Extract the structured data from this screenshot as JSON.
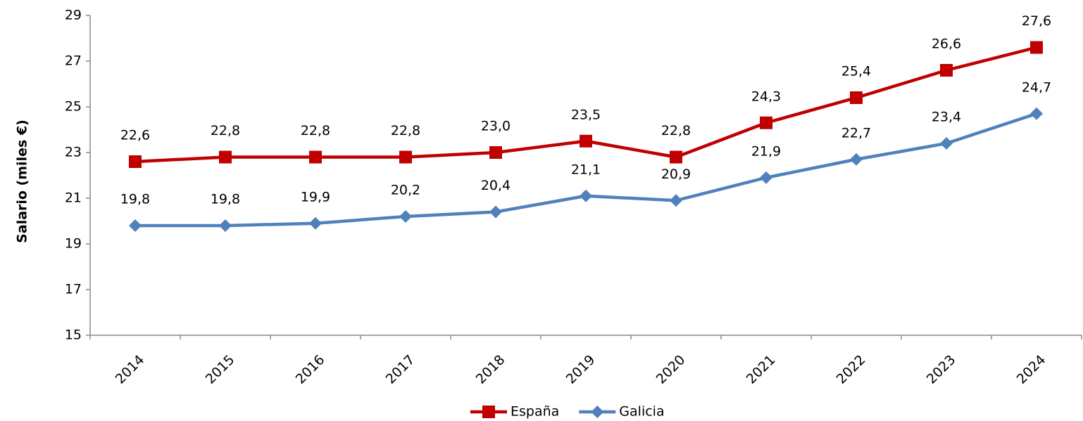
{
  "chart_data": {
    "type": "line",
    "y_label": "Salario  (miles €)",
    "categories": [
      "2014",
      "2015",
      "2016",
      "2017",
      "2018",
      "2019",
      "2020",
      "2021",
      "2022",
      "2023",
      "2024"
    ],
    "series": [
      {
        "name": "España",
        "color": "#c00000",
        "marker": "square",
        "values": [
          22.6,
          22.8,
          22.8,
          22.8,
          23.0,
          23.5,
          22.8,
          24.3,
          25.4,
          26.6,
          27.6
        ],
        "value_labels": [
          "22,6",
          "22,8",
          "22,8",
          "22,8",
          "23,0",
          "23,5",
          "22,8",
          "24,3",
          "25,4",
          "26,6",
          "27,6"
        ]
      },
      {
        "name": "Galicia",
        "color": "#4f81bd",
        "marker": "diamond",
        "values": [
          19.8,
          19.8,
          19.9,
          20.2,
          20.4,
          21.1,
          20.9,
          21.9,
          22.7,
          23.4,
          24.7
        ],
        "value_labels": [
          "19,8",
          "19,8",
          "19,9",
          "20,2",
          "20,4",
          "21,1",
          "20,9",
          "21,9",
          "22,7",
          "23,4",
          "24,7"
        ]
      }
    ],
    "ylim": [
      15,
      29
    ],
    "yticks": [
      15,
      17,
      19,
      21,
      23,
      25,
      27,
      29
    ],
    "legend": "bottom"
  }
}
